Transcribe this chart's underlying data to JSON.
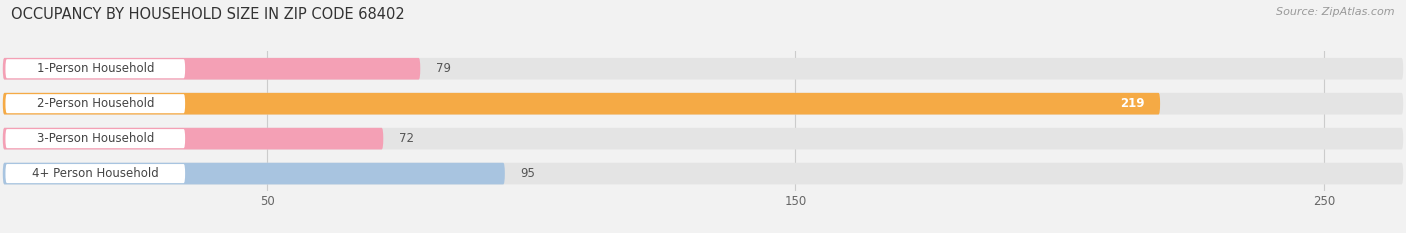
{
  "title": "OCCUPANCY BY HOUSEHOLD SIZE IN ZIP CODE 68402",
  "source": "Source: ZipAtlas.com",
  "categories": [
    "1-Person Household",
    "2-Person Household",
    "3-Person Household",
    "4+ Person Household"
  ],
  "values": [
    79,
    219,
    72,
    95
  ],
  "bar_colors": [
    "#f4a0b5",
    "#f5aa45",
    "#f4a0b5",
    "#a8c4e0"
  ],
  "label_colors": [
    "#555555",
    "#ffffff",
    "#555555",
    "#555555"
  ],
  "xlim": [
    0,
    265
  ],
  "xticks": [
    50,
    150,
    250
  ],
  "bar_height": 0.62,
  "background_color": "#f2f2f2",
  "bar_bg_color": "#e4e4e4",
  "title_fontsize": 10.5,
  "source_fontsize": 8,
  "value_fontsize": 8.5,
  "tick_fontsize": 8.5,
  "category_fontsize": 8.5
}
